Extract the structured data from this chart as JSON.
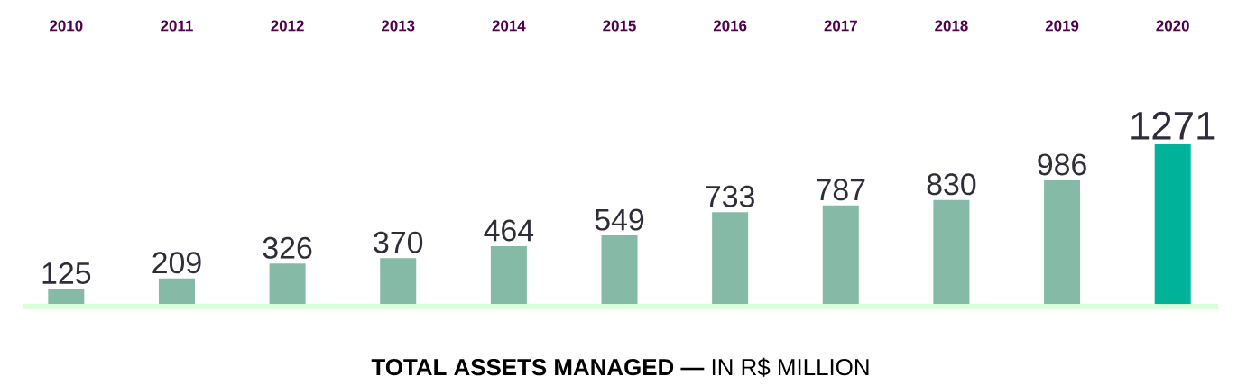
{
  "chart_data": {
    "type": "bar",
    "title": "**TOTAL ASSETS MANAGED —** IN R$ MILLION",
    "categories": [
      "2010",
      "2011",
      "2012",
      "2013",
      "2014",
      "2015",
      "2016",
      "2017",
      "2018",
      "2019",
      "2020"
    ],
    "values": [
      125,
      209,
      326,
      370,
      464,
      549,
      733,
      787,
      830,
      986,
      1271
    ],
    "colors": [
      "#85bba6",
      "#85bba6",
      "#85bba6",
      "#85bba6",
      "#85bba6",
      "#85bba6",
      "#85bba6",
      "#85bba6",
      "#85bba6",
      "#85bba6",
      "#00b29a"
    ],
    "data_labels": true
  }
}
